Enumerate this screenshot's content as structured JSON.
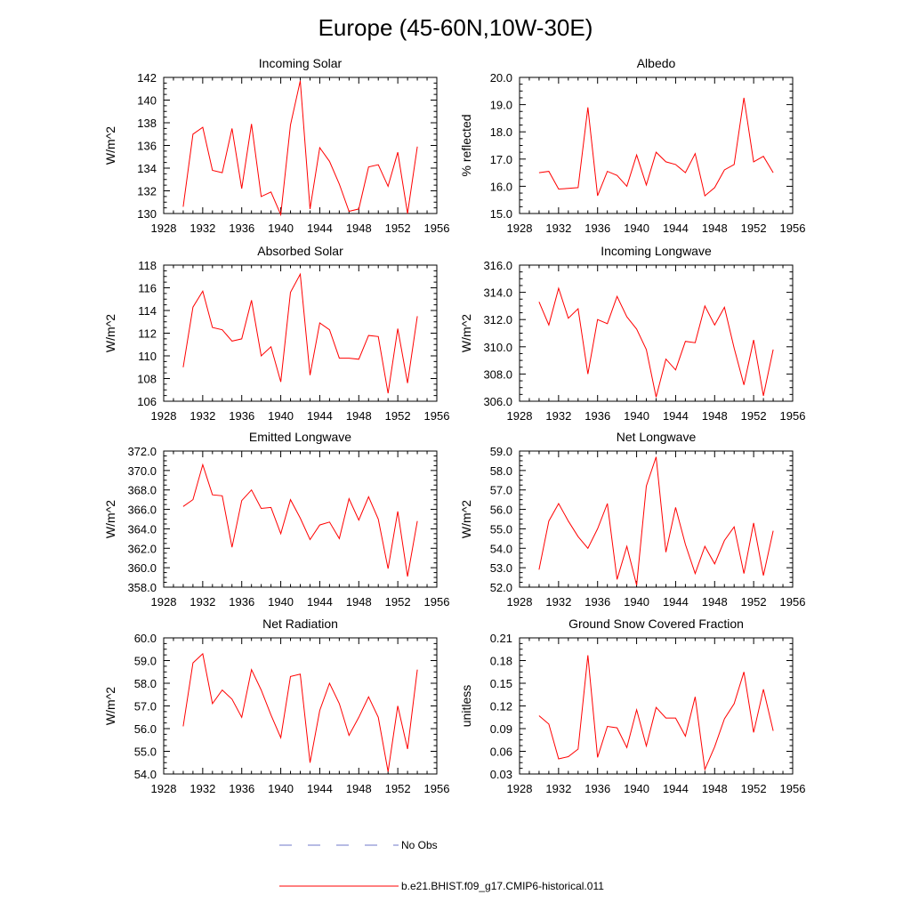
{
  "title": "Europe (45-60N,10W-30E)",
  "legend": {
    "obs_label": "No Obs",
    "obs_color": "#6f78c8",
    "model_label": "b.e21.BHIST.f09_g17.CMIP6-historical.011",
    "model_color": "#ff0000"
  },
  "chart_data": [
    {
      "type": "line",
      "title": "Incoming Solar",
      "ylabel": "W/m^2",
      "xlim": [
        1928,
        1956
      ],
      "xticks": [
        "1928",
        "1932",
        "1936",
        "1940",
        "1944",
        "1948",
        "1952",
        "1956"
      ],
      "ylim": [
        130,
        142
      ],
      "yticks": [
        "130",
        "132",
        "134",
        "136",
        "138",
        "140",
        "142"
      ],
      "x": [
        1930,
        1931,
        1932,
        1933,
        1934,
        1935,
        1936,
        1937,
        1938,
        1939,
        1940,
        1941,
        1942,
        1943,
        1944,
        1945,
        1946,
        1947,
        1948,
        1949,
        1950,
        1951,
        1952,
        1953,
        1954
      ],
      "series": [
        {
          "values": [
            130.6,
            137.0,
            137.6,
            133.8,
            133.6,
            137.5,
            132.2,
            137.9,
            131.5,
            131.9,
            129.9,
            137.8,
            141.7,
            130.4,
            135.8,
            134.6,
            132.6,
            130.2,
            130.4,
            134.1,
            134.3,
            132.4,
            135.4,
            130.0,
            135.9
          ]
        }
      ]
    },
    {
      "type": "line",
      "title": "Albedo",
      "ylabel": "% reflected",
      "xlim": [
        1928,
        1956
      ],
      "xticks": [
        "1928",
        "1932",
        "1936",
        "1940",
        "1944",
        "1948",
        "1952",
        "1956"
      ],
      "ylim": [
        15.0,
        20.0
      ],
      "yticks": [
        "15.0",
        "16.0",
        "17.0",
        "18.0",
        "19.0",
        "20.0"
      ],
      "x": [
        1930,
        1931,
        1932,
        1933,
        1934,
        1935,
        1936,
        1937,
        1938,
        1939,
        1940,
        1941,
        1942,
        1943,
        1944,
        1945,
        1946,
        1947,
        1948,
        1949,
        1950,
        1951,
        1952,
        1953,
        1954
      ],
      "series": [
        {
          "values": [
            16.5,
            16.55,
            15.9,
            15.92,
            15.95,
            18.9,
            15.65,
            16.55,
            16.4,
            16.0,
            17.15,
            16.05,
            17.25,
            16.9,
            16.8,
            16.5,
            17.2,
            15.65,
            15.95,
            16.6,
            16.8,
            19.25,
            16.9,
            17.1,
            16.5
          ]
        }
      ]
    },
    {
      "type": "line",
      "title": "Absorbed Solar",
      "ylabel": "W/m^2",
      "xlim": [
        1928,
        1956
      ],
      "xticks": [
        "1928",
        "1932",
        "1936",
        "1940",
        "1944",
        "1948",
        "1952",
        "1956"
      ],
      "ylim": [
        106,
        118
      ],
      "yticks": [
        "106",
        "108",
        "110",
        "112",
        "114",
        "116",
        "118"
      ],
      "x": [
        1930,
        1931,
        1932,
        1933,
        1934,
        1935,
        1936,
        1937,
        1938,
        1939,
        1940,
        1941,
        1942,
        1943,
        1944,
        1945,
        1946,
        1947,
        1948,
        1949,
        1950,
        1951,
        1952,
        1953,
        1954
      ],
      "series": [
        {
          "values": [
            109.0,
            114.3,
            115.7,
            112.5,
            112.3,
            111.3,
            111.5,
            114.9,
            110.0,
            110.8,
            107.7,
            115.6,
            117.2,
            108.3,
            112.9,
            112.3,
            109.8,
            109.8,
            109.7,
            111.8,
            111.7,
            106.7,
            112.4,
            107.6,
            113.5
          ]
        }
      ]
    },
    {
      "type": "line",
      "title": "Incoming Longwave",
      "ylabel": "W/m^2",
      "xlim": [
        1928,
        1956
      ],
      "xticks": [
        "1928",
        "1932",
        "1936",
        "1940",
        "1944",
        "1948",
        "1952",
        "1956"
      ],
      "ylim": [
        306.0,
        316.0
      ],
      "yticks": [
        "306.0",
        "308.0",
        "310.0",
        "312.0",
        "314.0",
        "316.0"
      ],
      "x": [
        1930,
        1931,
        1932,
        1933,
        1934,
        1935,
        1936,
        1937,
        1938,
        1939,
        1940,
        1941,
        1942,
        1943,
        1944,
        1945,
        1946,
        1947,
        1948,
        1949,
        1950,
        1951,
        1952,
        1953,
        1954
      ],
      "series": [
        {
          "values": [
            313.3,
            311.6,
            314.3,
            312.1,
            312.8,
            308.0,
            312.0,
            311.7,
            313.7,
            312.2,
            311.3,
            309.8,
            306.3,
            309.1,
            308.3,
            310.4,
            310.3,
            313.0,
            311.6,
            312.9,
            309.9,
            307.2,
            310.5,
            306.4,
            309.8
          ]
        }
      ]
    },
    {
      "type": "line",
      "title": "Emitted Longwave",
      "ylabel": "W/m^2",
      "xlim": [
        1928,
        1956
      ],
      "xticks": [
        "1928",
        "1932",
        "1936",
        "1940",
        "1944",
        "1948",
        "1952",
        "1956"
      ],
      "ylim": [
        358.0,
        372.0
      ],
      "yticks": [
        "358.0",
        "360.0",
        "362.0",
        "364.0",
        "366.0",
        "368.0",
        "370.0",
        "372.0"
      ],
      "x": [
        1930,
        1931,
        1932,
        1933,
        1934,
        1935,
        1936,
        1937,
        1938,
        1939,
        1940,
        1941,
        1942,
        1943,
        1944,
        1945,
        1946,
        1947,
        1948,
        1949,
        1950,
        1951,
        1952,
        1953,
        1954
      ],
      "series": [
        {
          "values": [
            366.3,
            367.0,
            370.6,
            367.5,
            367.4,
            362.1,
            366.9,
            368.0,
            366.1,
            366.2,
            363.5,
            367.0,
            365.1,
            362.9,
            364.4,
            364.7,
            363.0,
            367.1,
            364.9,
            367.3,
            365.0,
            359.9,
            365.8,
            359.1,
            364.8
          ]
        }
      ]
    },
    {
      "type": "line",
      "title": "Net Longwave",
      "ylabel": "W/m^2",
      "xlim": [
        1928,
        1956
      ],
      "xticks": [
        "1928",
        "1932",
        "1936",
        "1940",
        "1944",
        "1948",
        "1952",
        "1956"
      ],
      "ylim": [
        52.0,
        59.0
      ],
      "yticks": [
        "52.0",
        "53.0",
        "54.0",
        "55.0",
        "56.0",
        "57.0",
        "58.0",
        "59.0"
      ],
      "x": [
        1930,
        1931,
        1932,
        1933,
        1934,
        1935,
        1936,
        1937,
        1938,
        1939,
        1940,
        1941,
        1942,
        1943,
        1944,
        1945,
        1946,
        1947,
        1948,
        1949,
        1950,
        1951,
        1952,
        1953,
        1954
      ],
      "series": [
        {
          "values": [
            52.9,
            55.4,
            56.3,
            55.4,
            54.6,
            54.0,
            55.0,
            56.3,
            52.4,
            54.1,
            52.1,
            57.2,
            58.7,
            53.8,
            56.1,
            54.2,
            52.7,
            54.1,
            53.2,
            54.4,
            55.1,
            52.7,
            55.3,
            52.6,
            54.9
          ]
        }
      ]
    },
    {
      "type": "line",
      "title": "Net Radiation",
      "ylabel": "W/m^2",
      "xlim": [
        1928,
        1956
      ],
      "xticks": [
        "1928",
        "1932",
        "1936",
        "1940",
        "1944",
        "1948",
        "1952",
        "1956"
      ],
      "ylim": [
        54.0,
        60.0
      ],
      "yticks": [
        "54.0",
        "55.0",
        "56.0",
        "57.0",
        "58.0",
        "59.0",
        "60.0"
      ],
      "x": [
        1930,
        1931,
        1932,
        1933,
        1934,
        1935,
        1936,
        1937,
        1938,
        1939,
        1940,
        1941,
        1942,
        1943,
        1944,
        1945,
        1946,
        1947,
        1948,
        1949,
        1950,
        1951,
        1952,
        1953,
        1954
      ],
      "series": [
        {
          "values": [
            56.1,
            58.9,
            59.3,
            57.1,
            57.7,
            57.3,
            56.5,
            58.6,
            57.7,
            56.6,
            55.6,
            58.3,
            58.4,
            54.5,
            56.8,
            58.0,
            57.1,
            55.7,
            56.5,
            57.4,
            56.5,
            54.1,
            57.0,
            55.1,
            58.6
          ]
        }
      ]
    },
    {
      "type": "line",
      "title": "Ground Snow Covered Fraction",
      "ylabel": "unitless",
      "xlim": [
        1928,
        1956
      ],
      "xticks": [
        "1928",
        "1932",
        "1936",
        "1940",
        "1944",
        "1948",
        "1952",
        "1956"
      ],
      "ylim": [
        0.03,
        0.21
      ],
      "yticks": [
        "0.03",
        "0.06",
        "0.09",
        "0.12",
        "0.15",
        "0.18",
        "0.21"
      ],
      "x": [
        1930,
        1931,
        1932,
        1933,
        1934,
        1935,
        1936,
        1937,
        1938,
        1939,
        1940,
        1941,
        1942,
        1943,
        1944,
        1945,
        1946,
        1947,
        1948,
        1949,
        1950,
        1951,
        1952,
        1953,
        1954
      ],
      "series": [
        {
          "values": [
            0.107,
            0.096,
            0.05,
            0.053,
            0.063,
            0.187,
            0.052,
            0.093,
            0.091,
            0.065,
            0.115,
            0.067,
            0.118,
            0.104,
            0.104,
            0.08,
            0.132,
            0.036,
            0.066,
            0.103,
            0.123,
            0.165,
            0.085,
            0.142,
            0.087
          ]
        }
      ]
    }
  ]
}
